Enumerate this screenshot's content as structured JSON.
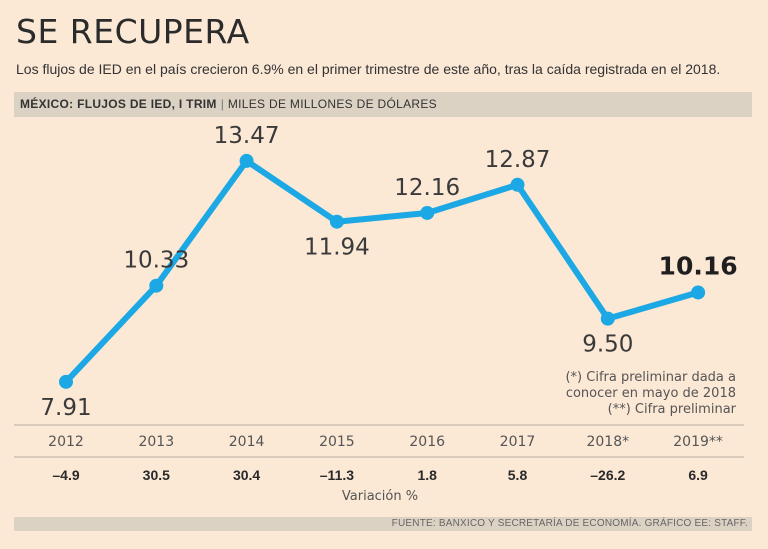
{
  "title": "SE RECUPERA",
  "subtitle": "Los flujos de IED en el país crecieron 6.9% en el primer trimestre de este año, tras la caída registrada en el 2018.",
  "header": {
    "label": "MÉXICO: FLUJOS DE IED, I TRIM",
    "unit": "MILES DE MILLONES DE DÓLARES"
  },
  "note": {
    "line1": "(*) Cifra preliminar dada a",
    "line2": "conocer en mayo de 2018",
    "line3": "(**) Cifra preliminar"
  },
  "footer": "FUENTE: BANXICO Y SECRETARÍA DE ECONOMÍA. GRÁFICO EE: STAFF.",
  "colors": {
    "line": "#1ba8e4",
    "background": "#fbe8d5",
    "bar": "#dcd2c4"
  },
  "chart_data": {
    "type": "line",
    "title": "MÉXICO: FLUJOS DE IED, I TRIM",
    "ylabel": "MILES DE MILLONES DE DÓLARES",
    "categories": [
      "2012",
      "2013",
      "2014",
      "2015",
      "2016",
      "2017",
      "2018*",
      "2019**"
    ],
    "values": [
      7.91,
      10.33,
      13.47,
      11.94,
      12.16,
      12.87,
      9.5,
      10.16
    ],
    "value_labels": [
      "7.91",
      "10.33",
      "13.47",
      "11.94",
      "12.16",
      "12.87",
      "9.50",
      "10.16"
    ],
    "label_positions": [
      "below",
      "above",
      "above",
      "below",
      "above",
      "above",
      "below",
      "above"
    ],
    "highlighted_index": 7,
    "variation_label": "Variación %",
    "variation": [
      "–4.9",
      "30.5",
      "30.4",
      "–11.3",
      "1.8",
      "5.8",
      "–26.2",
      "6.9"
    ],
    "ylim": [
      7.0,
      14.5
    ],
    "grid": false
  }
}
